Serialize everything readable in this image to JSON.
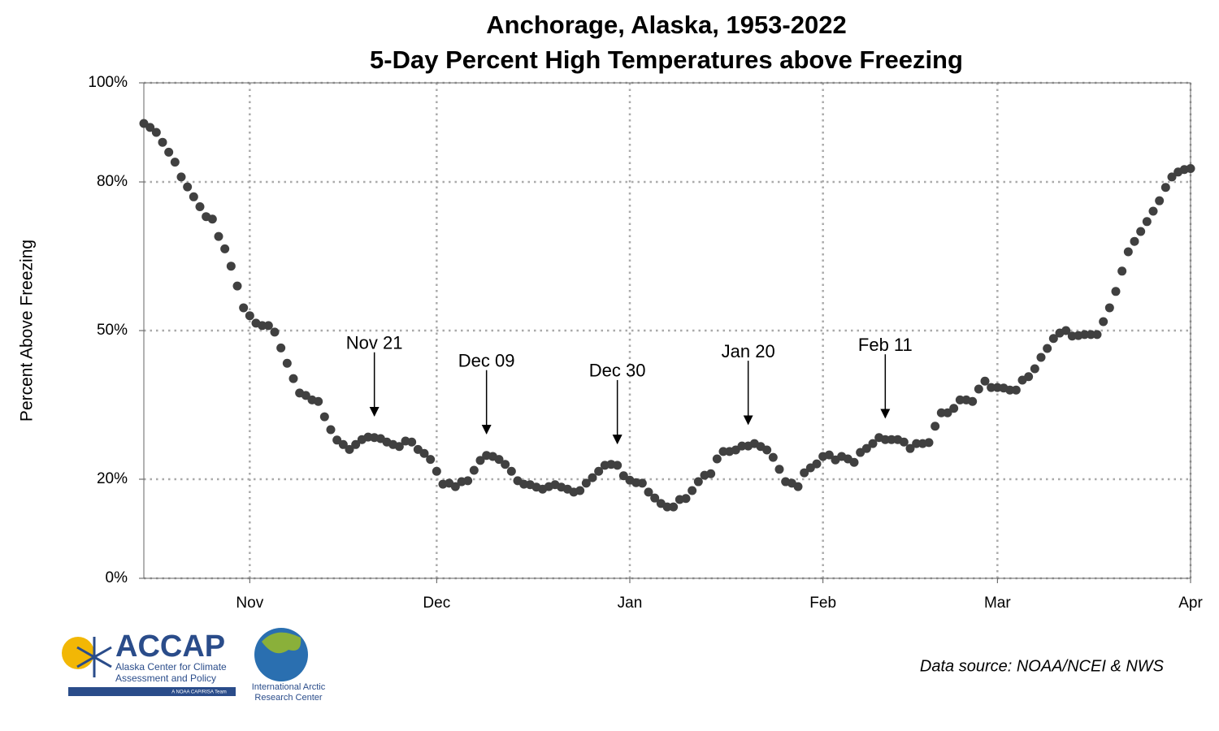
{
  "chart_data": {
    "type": "scatter",
    "title": "Anchorage, Alaska, 1953-2022",
    "subtitle": "5-Day Percent High Temperatures above Freezing",
    "ylabel": "Percent Above Freezing",
    "source": "Data source: NOAA/NCEI & NWS",
    "color": "#404040",
    "grid": true,
    "xlim": [
      0,
      168
    ],
    "ylim": [
      0,
      100
    ],
    "xticks": [
      {
        "value": 17,
        "label": "Nov"
      },
      {
        "value": 47,
        "label": "Dec"
      },
      {
        "value": 78,
        "label": "Jan"
      },
      {
        "value": 109,
        "label": "Feb"
      },
      {
        "value": 137,
        "label": "Mar"
      },
      {
        "value": 168,
        "label": "Apr"
      }
    ],
    "yticks": [
      {
        "value": 0,
        "label": "0%"
      },
      {
        "value": 20,
        "label": "20%"
      },
      {
        "value": 50,
        "label": "50%"
      },
      {
        "value": 80,
        "label": "80%"
      },
      {
        "value": 100,
        "label": "100%"
      }
    ],
    "x": [
      0,
      1,
      2,
      3,
      4,
      5,
      6,
      7,
      8,
      9,
      10,
      11,
      12,
      13,
      14,
      15,
      16,
      17,
      18,
      19,
      20,
      21,
      22,
      23,
      24,
      25,
      26,
      27,
      28,
      29,
      30,
      31,
      32,
      33,
      34,
      35,
      36,
      37,
      38,
      39,
      40,
      41,
      42,
      43,
      44,
      45,
      46,
      47,
      48,
      49,
      50,
      51,
      52,
      53,
      54,
      55,
      56,
      57,
      58,
      59,
      60,
      61,
      62,
      63,
      64,
      65,
      66,
      67,
      68,
      69,
      70,
      71,
      72,
      73,
      74,
      75,
      76,
      77,
      78,
      79,
      80,
      81,
      82,
      83,
      84,
      85,
      86,
      87,
      88,
      89,
      90,
      91,
      92,
      93,
      94,
      95,
      96,
      97,
      98,
      99,
      100,
      101,
      102,
      103,
      104,
      105,
      106,
      107,
      108,
      109,
      110,
      111,
      112,
      113,
      114,
      115,
      116,
      117,
      118,
      119,
      120,
      121,
      122,
      123,
      124,
      125,
      126,
      127,
      128,
      129,
      130,
      131,
      132,
      133,
      134,
      135,
      136,
      137,
      138,
      139,
      140,
      141,
      142,
      143,
      144,
      145,
      146,
      147,
      148,
      149,
      150,
      151,
      152,
      153,
      154,
      155,
      156,
      157,
      158,
      159,
      160,
      161,
      162,
      163,
      164,
      165,
      166,
      167,
      168
    ],
    "values": [
      91.8,
      91,
      90,
      88,
      86,
      84,
      81,
      79,
      77,
      75,
      73,
      72.5,
      69,
      66.5,
      63,
      59,
      54.6,
      53,
      51.5,
      51,
      51,
      49.7,
      46.5,
      43.4,
      40.3,
      37.4,
      36.9,
      36,
      35.7,
      32.6,
      30,
      27.9,
      27,
      26,
      27,
      28,
      28.5,
      28.4,
      28.2,
      27.5,
      27,
      26.6,
      27.7,
      27.5,
      26,
      25.2,
      24,
      21.6,
      19,
      19.2,
      18.5,
      19.5,
      19.7,
      21.8,
      23.8,
      24.8,
      24.6,
      24,
      23,
      21.6,
      19.7,
      19,
      18.9,
      18.4,
      18,
      18.5,
      18.9,
      18.4,
      18,
      17.4,
      17.7,
      19.2,
      20.3,
      21.6,
      22.8,
      23,
      22.8,
      20.7,
      19.8,
      19.3,
      19.2,
      17.4,
      16.2,
      15.1,
      14.4,
      14.4,
      15.9,
      16.1,
      17.7,
      19.5,
      20.8,
      21.1,
      24.1,
      25.6,
      25.6,
      25.9,
      26.7,
      26.7,
      27.2,
      26.6,
      25.9,
      24.4,
      22,
      19.5,
      19.2,
      18.5,
      21.3,
      22.3,
      23.1,
      24.6,
      24.9,
      23.9,
      24.6,
      24.1,
      23.4,
      25.4,
      26.2,
      27.2,
      28.4,
      28,
      28,
      28,
      27.5,
      26.2,
      27.2,
      27.2,
      27.4,
      30.7,
      33.4,
      33.4,
      34.3,
      36,
      36,
      35.7,
      38.2,
      39.8,
      38.5,
      38.5,
      38.4,
      38,
      38,
      40,
      40.7,
      42.3,
      44.6,
      46.4,
      48.4,
      49.5,
      50,
      48.9,
      49,
      49.2,
      49.2,
      49.2,
      51.8,
      54.6,
      57.9,
      62,
      65.9,
      68,
      70,
      72,
      74.1,
      76.2,
      78.9,
      81,
      82,
      82.5,
      82.7
    ],
    "annotations": [
      {
        "text": "Nov 21",
        "x": 37
      },
      {
        "text": "Dec 09",
        "x": 55
      },
      {
        "text": "Dec 30",
        "x": 76
      },
      {
        "text": "Jan 20",
        "x": 97
      },
      {
        "text": "Feb 11",
        "x": 119
      }
    ]
  },
  "logos": {
    "accap": "ACCAP",
    "accap_line1": "Alaska Center for Climate",
    "accap_line2": "Assessment and Policy",
    "accap_team": "A NOAA CAP/RISA Team",
    "iarc_line1": "International Arctic",
    "iarc_line2": "Research Center"
  }
}
